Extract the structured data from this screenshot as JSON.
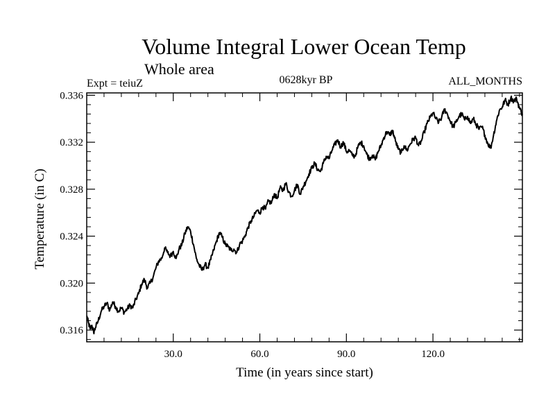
{
  "chart_data": {
    "type": "line",
    "title": "Volume Integral Lower Ocean Temp",
    "subtitle": "Whole area",
    "left_label": "Expt = teiuZ",
    "center_label": "0628kyr BP",
    "right_label": "ALL_MONTHS",
    "xlabel": "Time (in years since start)",
    "ylabel": "Temperature (in C)",
    "xlim": [
      0,
      151
    ],
    "ylim": [
      0.315,
      0.3362
    ],
    "x_ticks": [
      {
        "value": 30,
        "label": "30.0"
      },
      {
        "value": 60,
        "label": "60.0"
      },
      {
        "value": 90,
        "label": "90.0"
      },
      {
        "value": 120,
        "label": "120.0"
      }
    ],
    "y_ticks": [
      {
        "value": 0.316,
        "label": "0.316"
      },
      {
        "value": 0.32,
        "label": "0.320"
      },
      {
        "value": 0.324,
        "label": "0.324"
      },
      {
        "value": 0.328,
        "label": "0.328"
      },
      {
        "value": 0.332,
        "label": "0.332"
      },
      {
        "value": 0.336,
        "label": "0.336"
      }
    ],
    "x_minor_step": 6,
    "y_minor_step": 0.0008,
    "grid": false,
    "series": [
      {
        "name": "Volume integral lower ocean temperature",
        "x": [
          0,
          0.6,
          1.2,
          1.8,
          2.4,
          3,
          4,
          5,
          6,
          7,
          8,
          9,
          10,
          11,
          12,
          13,
          14,
          15,
          16,
          17,
          18,
          19,
          20,
          21,
          22,
          23,
          24,
          25,
          26,
          27,
          28,
          29,
          30,
          31,
          32,
          33,
          34,
          35,
          36,
          37,
          38,
          39,
          40,
          41,
          42,
          43,
          44,
          45,
          46,
          47,
          48,
          49,
          50,
          51,
          52,
          53,
          54,
          55,
          56,
          57,
          58,
          59,
          60,
          61,
          62,
          63,
          64,
          65,
          66,
          67,
          68,
          69,
          70,
          71,
          72,
          73,
          74,
          75,
          76,
          77,
          78,
          79,
          80,
          81,
          82,
          83,
          84,
          85,
          86,
          87,
          88,
          89,
          90,
          91,
          92,
          93,
          94,
          95,
          96,
          97,
          98,
          99,
          100,
          101,
          102,
          103,
          104,
          105,
          106,
          107,
          108,
          109,
          110,
          111,
          112,
          113,
          114,
          115,
          116,
          117,
          118,
          119,
          120,
          121,
          122,
          123,
          124,
          125,
          126,
          127,
          128,
          129,
          130,
          131,
          132,
          133,
          134,
          135,
          136,
          137,
          138,
          139,
          140,
          141,
          142,
          143,
          144,
          145,
          146,
          147,
          148,
          149,
          150,
          151
        ],
        "y": [
          0.3172,
          0.3166,
          0.3161,
          0.3164,
          0.3158,
          0.3162,
          0.3168,
          0.3176,
          0.318,
          0.3183,
          0.3177,
          0.3184,
          0.318,
          0.3176,
          0.3179,
          0.3175,
          0.3178,
          0.3181,
          0.3179,
          0.3186,
          0.3191,
          0.3199,
          0.3203,
          0.3196,
          0.32,
          0.3205,
          0.3213,
          0.3219,
          0.3221,
          0.323,
          0.3226,
          0.3223,
          0.3227,
          0.3221,
          0.3229,
          0.3233,
          0.3242,
          0.3248,
          0.3244,
          0.3233,
          0.3221,
          0.3215,
          0.3211,
          0.3216,
          0.3213,
          0.322,
          0.3228,
          0.3236,
          0.3243,
          0.3239,
          0.3233,
          0.3231,
          0.3228,
          0.3229,
          0.3226,
          0.3233,
          0.3236,
          0.3241,
          0.3248,
          0.3253,
          0.3257,
          0.3262,
          0.326,
          0.3265,
          0.3263,
          0.327,
          0.3268,
          0.3276,
          0.3272,
          0.3281,
          0.3279,
          0.3285,
          0.3278,
          0.3274,
          0.3279,
          0.3284,
          0.3276,
          0.3282,
          0.3287,
          0.3293,
          0.3298,
          0.3302,
          0.3297,
          0.3295,
          0.3302,
          0.3308,
          0.3306,
          0.3313,
          0.3318,
          0.3322,
          0.3316,
          0.332,
          0.3312,
          0.3313,
          0.3309,
          0.3308,
          0.3316,
          0.332,
          0.3317,
          0.331,
          0.3306,
          0.3309,
          0.3305,
          0.3312,
          0.3317,
          0.3324,
          0.3329,
          0.3326,
          0.333,
          0.3321,
          0.3314,
          0.3311,
          0.3317,
          0.3313,
          0.3318,
          0.3322,
          0.3324,
          0.3317,
          0.3321,
          0.3329,
          0.3336,
          0.3341,
          0.3345,
          0.334,
          0.3337,
          0.3341,
          0.3348,
          0.3344,
          0.3338,
          0.3333,
          0.3337,
          0.3342,
          0.3344,
          0.3339,
          0.3342,
          0.3336,
          0.334,
          0.3335,
          0.3331,
          0.3333,
          0.3326,
          0.3319,
          0.3315,
          0.3326,
          0.3338,
          0.3347,
          0.335,
          0.3356,
          0.3352,
          0.3358,
          0.3355,
          0.3357,
          0.3349,
          0.3344
        ]
      }
    ]
  }
}
